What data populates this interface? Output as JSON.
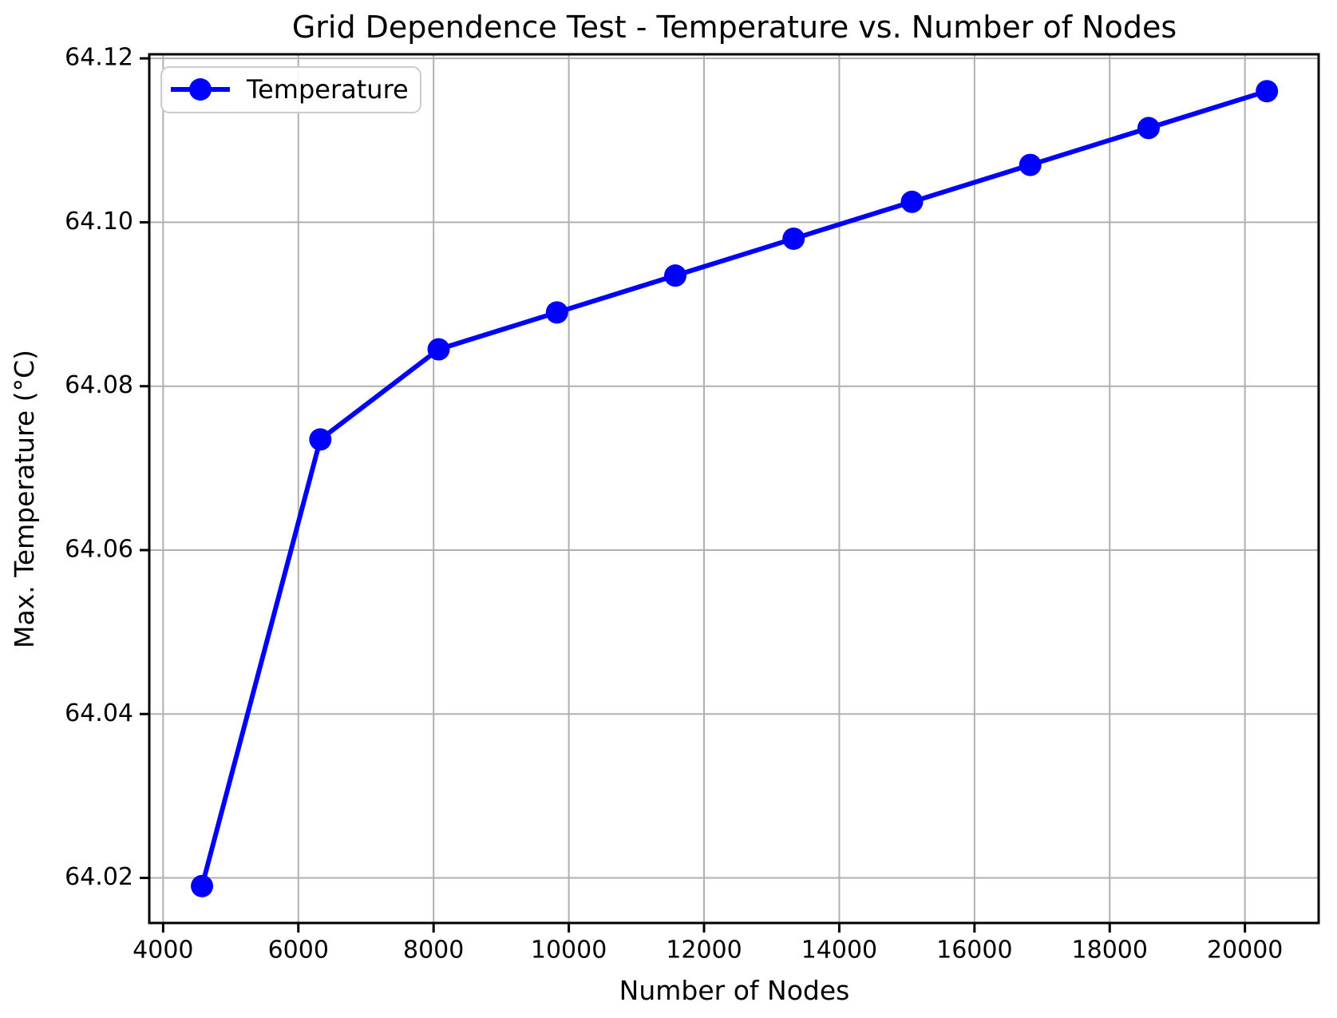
{
  "figure": {
    "background_color": "#ffffff"
  },
  "chart_data": {
    "type": "line",
    "title": "Grid Dependence Test - Temperature vs. Number of Nodes",
    "xlabel": "Number of Nodes",
    "ylabel": "Max. Temperature (°C)",
    "series": [
      {
        "name": "Temperature",
        "color": "#0000ff",
        "marker": "circle",
        "marker_size": 14,
        "line_width": 6,
        "x": [
          4575,
          6325,
          8075,
          9825,
          11575,
          13325,
          15075,
          16825,
          18575,
          20325
        ],
        "y": [
          64.019,
          64.0735,
          64.0845,
          64.089,
          64.0935,
          64.098,
          64.1025,
          64.107,
          64.1115,
          64.116
        ]
      }
    ],
    "xlim": [
      3795,
      21090
    ],
    "ylim": [
      64.0145,
      64.1205
    ],
    "xticks": {
      "values": [
        4000,
        6000,
        8000,
        10000,
        12000,
        14000,
        16000,
        18000,
        20000
      ],
      "labels": [
        "4000",
        "6000",
        "8000",
        "10000",
        "12000",
        "14000",
        "16000",
        "18000",
        "20000"
      ]
    },
    "yticks": {
      "values": [
        64.02,
        64.04,
        64.06,
        64.08,
        64.1,
        64.12
      ],
      "labels": [
        "64.02",
        "64.04",
        "64.06",
        "64.08",
        "64.10",
        "64.12"
      ]
    },
    "grid": true,
    "legend": {
      "position": "upper left"
    }
  },
  "style": {
    "grid_color": "#b0b0b0",
    "axis_color": "#000000",
    "text_color": "#000000",
    "legend_border_color": "#cccccc",
    "legend_background": "#ffffff"
  }
}
